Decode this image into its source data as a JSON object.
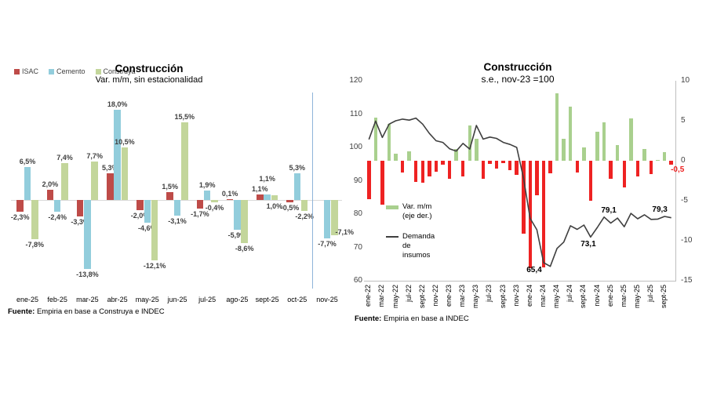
{
  "chart_data": [
    {
      "type": "bar",
      "title": "Construcción",
      "subtitle": "Var. m/m, sin estacionalidad",
      "categories": [
        "ene-25",
        "feb-25",
        "mar-25",
        "abr-25",
        "may-25",
        "jun-25",
        "jul-25",
        "ago-25",
        "sept-25",
        "oct-25",
        "nov-25"
      ],
      "series": [
        {
          "name": "ISAC",
          "color": "#BE4B48",
          "values": [
            -2.3,
            2.0,
            -3.3,
            5.3,
            -2.0,
            1.5,
            -1.7,
            0.1,
            1.1,
            -0.5,
            null
          ]
        },
        {
          "name": "Cemento",
          "color": "#92CDDC",
          "values": [
            6.5,
            -2.4,
            -13.8,
            18.0,
            -4.6,
            -3.1,
            1.9,
            -5.9,
            1.1,
            5.3,
            -7.7
          ]
        },
        {
          "name": "Construya",
          "color": "#C3D69B",
          "values": [
            -7.8,
            7.4,
            7.7,
            10.5,
            -12.1,
            15.5,
            -0.4,
            -8.6,
            1.0,
            -2.2,
            -7.1
          ]
        }
      ],
      "value_suffix": "%",
      "ylim": [
        -16,
        20
      ],
      "separator_before": "nov-25",
      "separator_color": "#8EB4D9",
      "source_bold": "Fuente:",
      "source_text": "Empiria en base a Construya e INDEC"
    },
    {
      "type": "combo",
      "title": "Construcción",
      "subtitle": "s.e., nov-23 =100",
      "x": [
        "ene-22",
        "feb-22",
        "mar-22",
        "abr-22",
        "may-22",
        "jun-22",
        "jul-22",
        "ago-22",
        "sept-22",
        "oct-22",
        "nov-22",
        "dic-22",
        "ene-23",
        "feb-23",
        "mar-23",
        "abr-23",
        "may-23",
        "jun-23",
        "jul-23",
        "ago-23",
        "sept-23",
        "oct-23",
        "nov-23",
        "dic-23",
        "ene-24",
        "feb-24",
        "mar-24",
        "abr-24",
        "may-24",
        "jun-24",
        "jul-24",
        "ago-24",
        "sept-24",
        "oct-24",
        "nov-24",
        "dic-24",
        "ene-25",
        "feb-25",
        "mar-25",
        "abr-25",
        "may-25",
        "jun-25",
        "jul-25",
        "ago-25",
        "sept-25",
        "oct-25"
      ],
      "x_tick_every": 2,
      "bars": {
        "name": "Var. m/m (eje der.)",
        "axis": "right",
        "color_positive": "#A9D08E",
        "color_negative": "#EE2222",
        "values": [
          -4.8,
          5.4,
          -5.5,
          4.6,
          0.9,
          -1.5,
          1.2,
          -2.6,
          -2.7,
          -2.0,
          -1.4,
          -0.5,
          -2.3,
          1.5,
          -2.0,
          4.4,
          2.7,
          -2.3,
          -0.4,
          -1.0,
          -0.3,
          -1.2,
          -1.8,
          -9.1,
          -13.4,
          -4.3,
          -13.3,
          -1.6,
          8.4,
          2.7,
          6.8,
          -1.5,
          1.7,
          -5.0,
          3.6,
          4.8,
          -2.3,
          2.0,
          -3.3,
          5.3,
          -2.0,
          1.5,
          -1.7,
          0.1,
          1.1,
          -0.5
        ]
      },
      "line": {
        "name": "Demanda de insumos",
        "axis": "left",
        "color": "#3F3F3F",
        "values": [
          102.4,
          107.9,
          103.0,
          107.0,
          108.0,
          108.5,
          108.2,
          108.8,
          107.0,
          104.2,
          102.0,
          101.5,
          99.6,
          98.9,
          101.2,
          99.5,
          106.6,
          102.5,
          103.1,
          102.7,
          101.5,
          100.9,
          100.0,
          90.9,
          78.7,
          75.3,
          65.4,
          64.3,
          69.7,
          71.6,
          76.5,
          75.4,
          76.7,
          73.1,
          76.0,
          79.1,
          77.3,
          78.8,
          76.2,
          80.2,
          78.6,
          79.8,
          78.4,
          78.5,
          79.3,
          78.9
        ]
      },
      "left_axis": {
        "min": 60,
        "max": 120,
        "ticks": [
          120,
          110,
          100,
          90,
          80,
          70,
          60
        ]
      },
      "right_axis": {
        "min": -15,
        "max": 10,
        "ticks": [
          10,
          5,
          0,
          -5,
          -10,
          -15
        ]
      },
      "annotations": [
        {
          "x": "mar-24",
          "series": "line",
          "text": "65,4",
          "position": "below",
          "dx": -12,
          "color": "#000000"
        },
        {
          "x": "oct-24",
          "series": "line",
          "text": "73,1",
          "position": "below",
          "dx": -3,
          "color": "#000000"
        },
        {
          "x": "dic-24",
          "series": "line",
          "text": "79,1",
          "position": "above",
          "dx": 6,
          "color": "#000000"
        },
        {
          "x": "sept-25",
          "series": "line",
          "text": "79,3",
          "position": "above",
          "dx": -6,
          "color": "#000000"
        },
        {
          "x": "oct-25",
          "series": "bars",
          "text": "-0,5",
          "position": "below",
          "dx": 8,
          "color": "#EE2222"
        }
      ],
      "source_bold": "Fuente:",
      "source_text": "Empiria en base a INDEC"
    }
  ]
}
